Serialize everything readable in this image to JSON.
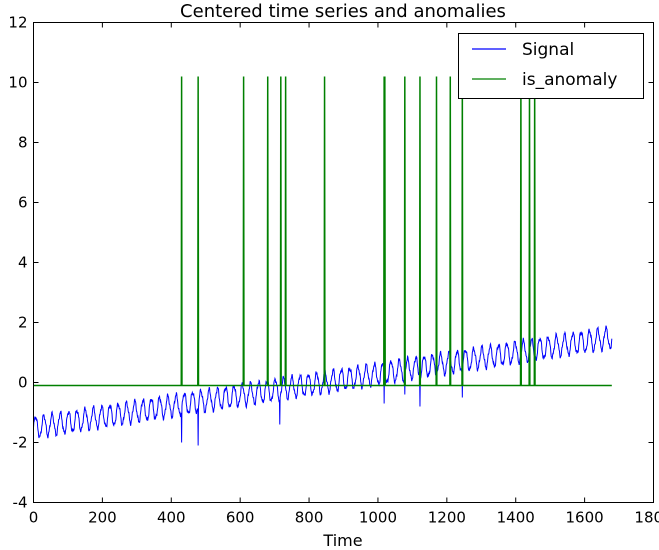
{
  "chart_data": {
    "type": "line",
    "title": "Centered time series and anomalies",
    "xlabel": "Time",
    "ylabel": "",
    "xlim": [
      0,
      1800
    ],
    "ylim": [
      -4,
      12
    ],
    "xticks": [
      0,
      200,
      400,
      600,
      800,
      1000,
      1200,
      1400,
      1600,
      1800
    ],
    "yticks": [
      -4,
      -2,
      0,
      2,
      4,
      6,
      8,
      10,
      12
    ],
    "grid": false,
    "legend": "top-right",
    "n_points": 1680,
    "series": [
      {
        "name": "Signal",
        "color": "#0000ff",
        "trend_start": -1.5,
        "trend_end": 1.5,
        "oscillation_amplitude": 0.35,
        "oscillation_period": 24,
        "dips": [
          {
            "x": 430,
            "y": -2.0
          },
          {
            "x": 478,
            "y": -2.1
          },
          {
            "x": 715,
            "y": -1.4
          },
          {
            "x": 1018,
            "y": -0.7
          },
          {
            "x": 1078,
            "y": -0.4
          },
          {
            "x": 1122,
            "y": -0.8
          },
          {
            "x": 1245,
            "y": -0.5
          }
        ]
      },
      {
        "name": "is_anomaly",
        "color": "#008000",
        "baseline": -0.1,
        "spike_value": 10.2,
        "spikes": [
          430,
          478,
          610,
          680,
          718,
          732,
          845,
          1018,
          1020,
          1078,
          1122,
          1170,
          1210,
          1245,
          1415,
          1440,
          1455
        ]
      }
    ]
  }
}
